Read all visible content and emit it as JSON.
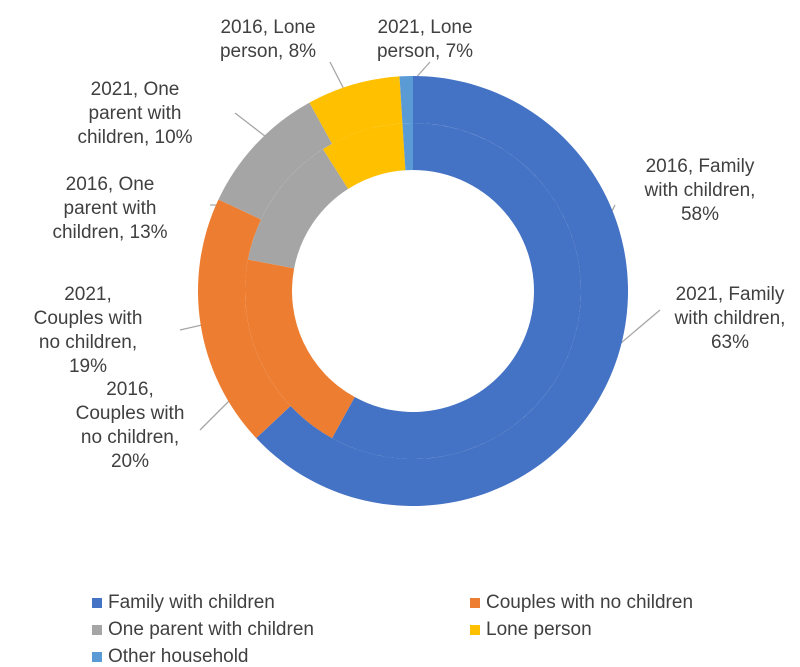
{
  "chart_data": {
    "type": "doughnut",
    "categories": [
      "Family with children",
      "Couples with no children",
      "One parent with children",
      "Lone person",
      "Other household"
    ],
    "colors": [
      "#4472c4",
      "#ed7d31",
      "#a5a5a5",
      "#ffc000",
      "#5b9bd5"
    ],
    "series": [
      {
        "name": "2016",
        "values": [
          58,
          20,
          13,
          8,
          1
        ],
        "value_labels": [
          "2016, Family with children, 58%",
          "2016, Couples with no children, 20%",
          "2016, One parent with children, 13%",
          "2016, Lone person, 8%",
          null
        ]
      },
      {
        "name": "2021",
        "values": [
          63,
          19,
          10,
          7,
          1
        ],
        "value_labels": [
          "2021, Family with children, 63%",
          "2021, Couples with no children, 19%",
          "2021, One parent with children, 10%",
          "2021, Lone person, 7%",
          null
        ]
      }
    ]
  }
}
